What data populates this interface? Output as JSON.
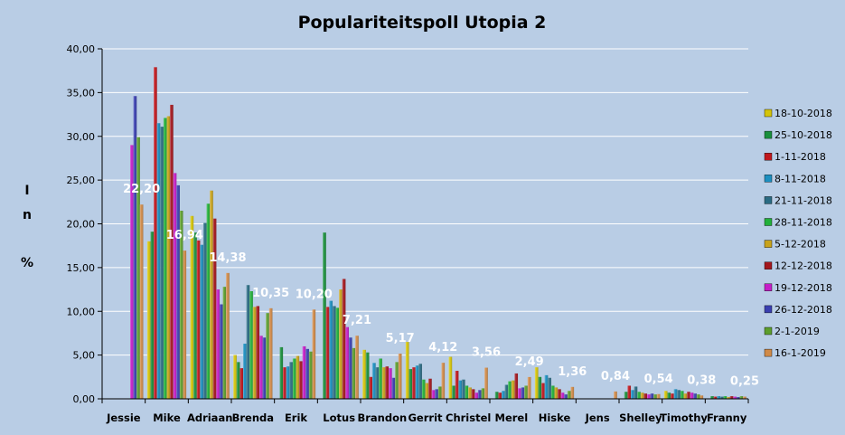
{
  "colors": {
    "background": "#b9cde5",
    "plot_background": "#b9cde5",
    "grid": "#ffffff",
    "axis": "#000000"
  },
  "chart_data": {
    "type": "bar",
    "title": "Populariteitspoll Utopia 2",
    "ylabel_lines": [
      "I",
      "n",
      "%"
    ],
    "xlabel": "",
    "ylim": [
      0,
      40
    ],
    "yticks": [
      "0,00",
      "5,00",
      "10,00",
      "15,00",
      "20,00",
      "25,00",
      "30,00",
      "35,00",
      "40,00"
    ],
    "grid": true,
    "legend_position": "right",
    "categories": [
      "Jessie",
      "Mike",
      "Adriaan",
      "Brenda",
      "Erik",
      "Lotus",
      "Brandon",
      "Gerrit",
      "Christel",
      "Merel",
      "Hiske",
      "Jens",
      "Shelley",
      "Timothy",
      "Franny"
    ],
    "series": [
      {
        "name": "18-10-2018",
        "color": "#d4c40a",
        "values": [
          null,
          18.0,
          20.9,
          5.0,
          null,
          null,
          5.6,
          6.5,
          4.8,
          null,
          3.6,
          null,
          null,
          0.9,
          null
        ]
      },
      {
        "name": "25-10-2018",
        "color": "#1a8f3c",
        "values": [
          null,
          19.1,
          19.0,
          4.2,
          5.9,
          19.0,
          5.3,
          3.4,
          1.5,
          0.8,
          2.5,
          null,
          0.8,
          0.7,
          0.3
        ]
      },
      {
        "name": "1-11-2018",
        "color": "#c0171d",
        "values": [
          null,
          37.9,
          18.1,
          3.5,
          3.6,
          10.5,
          2.5,
          3.6,
          3.2,
          0.7,
          1.8,
          null,
          1.5,
          0.6,
          0.25
        ]
      },
      {
        "name": "8-11-2018",
        "color": "#1c8fc0",
        "values": [
          null,
          31.5,
          17.6,
          6.3,
          3.7,
          11.2,
          4.1,
          3.8,
          2.1,
          0.9,
          2.7,
          null,
          1.0,
          1.1,
          0.3
        ]
      },
      {
        "name": "21-11-2018",
        "color": "#2a6b83",
        "values": [
          null,
          31.1,
          20.1,
          13.0,
          4.2,
          10.6,
          3.6,
          4.0,
          2.2,
          1.6,
          2.4,
          null,
          1.4,
          1.0,
          0.25
        ]
      },
      {
        "name": "28-11-2018",
        "color": "#22b03a",
        "values": [
          null,
          32.1,
          22.3,
          12.3,
          4.6,
          10.4,
          4.6,
          2.2,
          1.5,
          2.0,
          1.5,
          null,
          0.8,
          0.9,
          0.3
        ]
      },
      {
        "name": "5-12-2018",
        "color": "#c8a31c",
        "values": [
          null,
          32.3,
          23.8,
          10.5,
          4.9,
          12.5,
          3.6,
          1.8,
          1.3,
          2.1,
          1.3,
          null,
          0.7,
          0.6,
          0.2
        ]
      },
      {
        "name": "12-12-2018",
        "color": "#a3171d",
        "values": [
          null,
          33.6,
          20.6,
          10.6,
          4.3,
          13.7,
          3.7,
          2.3,
          1.1,
          2.9,
          1.1,
          null,
          0.6,
          0.8,
          0.3
        ]
      },
      {
        "name": "19-12-2018",
        "color": "#c51ec8",
        "values": [
          29.0,
          25.8,
          12.5,
          7.2,
          6.0,
          8.2,
          3.5,
          1.0,
          0.7,
          1.2,
          0.7,
          null,
          0.5,
          0.7,
          0.25
        ]
      },
      {
        "name": "26-12-2018",
        "color": "#3a3fb0",
        "values": [
          34.6,
          24.4,
          10.8,
          7.0,
          5.7,
          7.0,
          2.4,
          1.1,
          1.0,
          1.3,
          0.5,
          null,
          0.6,
          0.6,
          0.2
        ]
      },
      {
        "name": "2-1-2019",
        "color": "#5c9e2d",
        "values": [
          29.9,
          21.5,
          12.8,
          9.8,
          5.4,
          5.8,
          4.2,
          1.4,
          1.2,
          1.5,
          0.9,
          null,
          0.5,
          0.5,
          0.3
        ]
      },
      {
        "name": "16-1-2019",
        "color": "#d08a48",
        "values": [
          22.2,
          16.94,
          14.38,
          10.35,
          10.2,
          7.21,
          5.17,
          4.12,
          3.56,
          2.49,
          1.36,
          0.84,
          0.54,
          0.38,
          0.25
        ]
      }
    ],
    "data_labels": [
      "22,20",
      "16,94",
      "14,38",
      "10,35",
      "10,20",
      "7,21",
      "5,17",
      "4,12",
      "3,56",
      "2,49",
      "1,36",
      "0,84",
      "0,54",
      "0,38",
      "0,25"
    ]
  }
}
